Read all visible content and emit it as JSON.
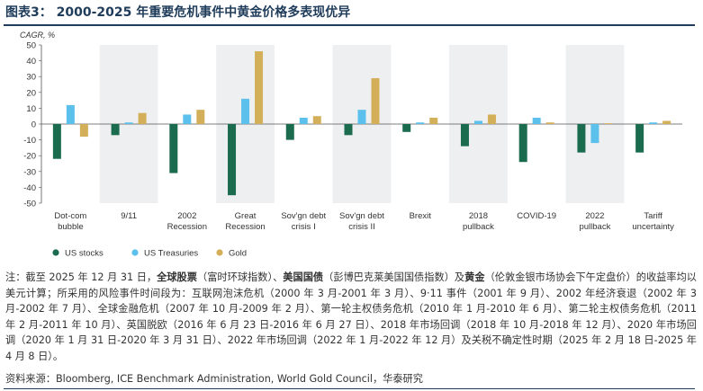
{
  "figure": {
    "title": "图表3：  2000-2025 年重要危机事件中黄金价格多表现优异",
    "notes": {
      "prefix": "注：截至 2025 年 12 月 31 日，",
      "stocks_label": "全球股票",
      "stocks_desc": "（富时环球指数）、",
      "treasuries_label": "美国国债",
      "treasuries_desc": "（彭博巴克莱美国国债指数）及",
      "gold_label": "黄金",
      "body": "（伦敦金银市场协会下午定盘价）的收益率均以美元计算；所采用的风险事件时间段为：互联网泡沫危机（2000 年 3 月-2001 年 3 月）、9·11 事件（2001 年 9 月）、2002 年经济衰退（2002 年 3 月-2002 年 7 月）、全球金融危机（2007 年 10 月-2009 年 2 月）、第一轮主权债务危机（2010 年 1 月-2010 年 6 月）、第二轮主权债务危机（2011 年 2 月-2011 年 10 月）、英国脱欧（2016 年 6 月 23 日-2016 年 6 月 27 日）、2018 年市场回调（2018 年 10 月-2018 年 12 月）、2020 年市场回调（2020 年 1 月 31 日-2020 年 3 月 31 日）、2022 年市场回调（2022 年 1 月-2022 年 12 月）及关税不确定性时期（2025 年 2 月 18 日-2025 年 4 月 8 日）。"
    },
    "source": "资料来源：Bloomberg, ICE Benchmark Administration, World Gold Council，华泰研究"
  },
  "chart_data": {
    "type": "bar",
    "ylabel": "CAGR, %",
    "ylim": [
      -50,
      50
    ],
    "yticks": [
      50,
      40,
      30,
      20,
      10,
      0,
      -10,
      -20,
      -30,
      -40,
      -50
    ],
    "grid": false,
    "legend_position": "bottom-left",
    "shaded_bands": "alternating categories",
    "categories": [
      [
        "Dot-com",
        "bubble"
      ],
      [
        "9/11"
      ],
      [
        "2002",
        "Recession"
      ],
      [
        "Great",
        "Recession"
      ],
      [
        "Sov'gn debt",
        "crisis I"
      ],
      [
        "Sov'gn debt",
        "crisis II"
      ],
      [
        "Brexit"
      ],
      [
        "2018",
        "pullback"
      ],
      [
        "COVID-19"
      ],
      [
        "2022",
        "pullback"
      ],
      [
        "Tariff",
        "uncertainty"
      ]
    ],
    "series": [
      {
        "name": "US stocks",
        "color": "#1b6b4f",
        "values": [
          -22,
          -7,
          -31,
          -45,
          -10,
          -7,
          -5,
          -14,
          -24,
          -18,
          -18
        ]
      },
      {
        "name": "US Treasuries",
        "color": "#5bc0eb",
        "values": [
          12,
          1,
          6,
          16,
          4,
          9,
          1,
          2,
          4,
          -12,
          1
        ]
      },
      {
        "name": "Gold",
        "color": "#d4af5a",
        "values": [
          -8,
          7,
          9,
          46,
          5,
          29,
          4,
          6,
          1,
          0.5,
          2
        ]
      }
    ]
  }
}
